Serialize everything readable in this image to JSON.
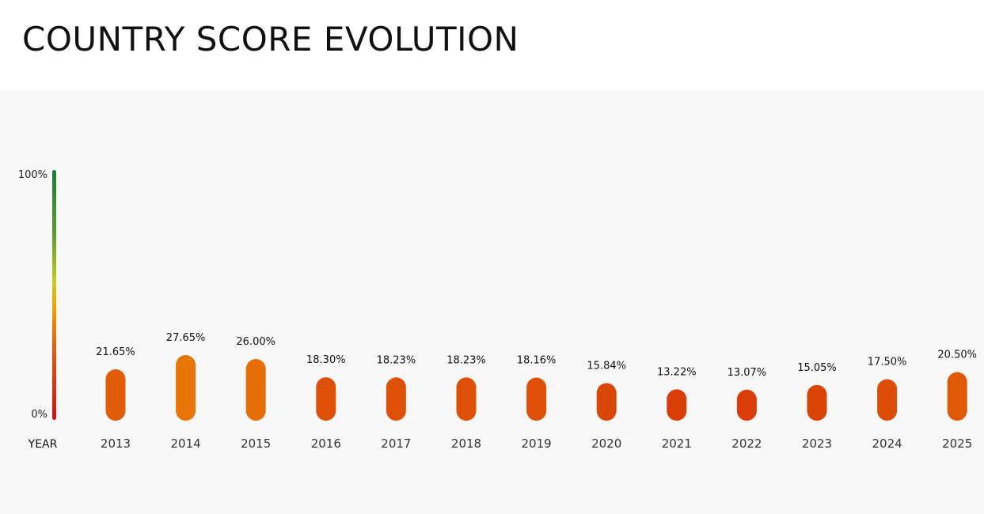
{
  "title": "COUNTRY SCORE EVOLUTION",
  "chart_data": {
    "type": "bar",
    "title": "COUNTRY SCORE EVOLUTION",
    "xlabel": "YEAR",
    "ylabel": "",
    "ylim": [
      0,
      100
    ],
    "y_tick_labels": [
      "0%",
      "100%"
    ],
    "categories": [
      "2013",
      "2014",
      "2015",
      "2016",
      "2017",
      "2018",
      "2019",
      "2020",
      "2021",
      "2022",
      "2023",
      "2024",
      "2025"
    ],
    "values": [
      21.65,
      27.65,
      26.0,
      18.3,
      18.23,
      18.23,
      18.16,
      15.84,
      13.22,
      13.07,
      15.05,
      17.5,
      20.5
    ],
    "value_labels": [
      "21.65%",
      "27.65%",
      "26.00%",
      "18.30%",
      "18.23%",
      "18.23%",
      "18.16%",
      "15.84%",
      "13.22%",
      "13.07%",
      "15.05%",
      "17.50%",
      "20.50%"
    ],
    "grid": false,
    "legend": "none",
    "color_scale": [
      "#cc1111",
      "#e06010",
      "#f0a000",
      "#c8cc20",
      "#5a9a30",
      "#1a7a38"
    ]
  }
}
